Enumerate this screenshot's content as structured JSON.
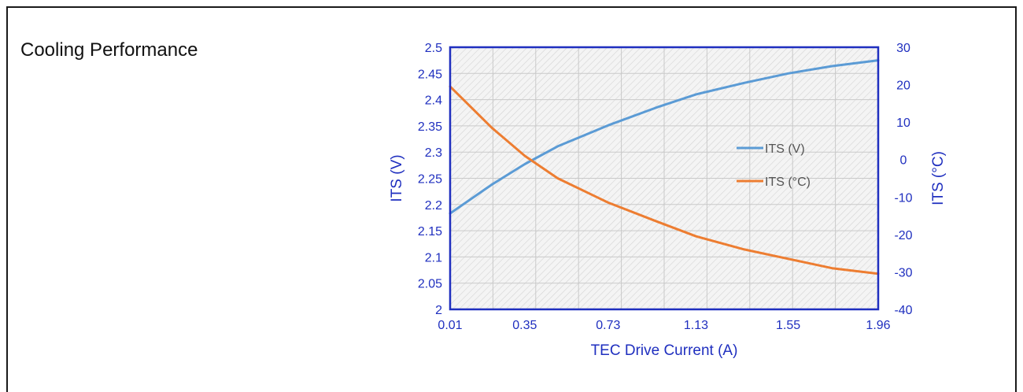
{
  "panel": {
    "title": "Cooling Performance"
  },
  "chart_data": {
    "type": "line",
    "xlabel": "TEC Drive Current (A)",
    "ylabel": "ITS (V)",
    "y2label": "ITS (°C)",
    "x_ticks": [
      "0.01",
      "0.35",
      "0.73",
      "1.13",
      "1.55",
      "1.96"
    ],
    "xlim": [
      0.01,
      1.96
    ],
    "ylim": [
      2.0,
      2.5
    ],
    "y_ticks": [
      "2",
      "2.05",
      "2.1",
      "2.15",
      "2.2",
      "2.25",
      "2.3",
      "2.35",
      "2.4",
      "2.45",
      "2.5"
    ],
    "y2lim": [
      -40,
      30
    ],
    "y2_ticks": [
      "-40",
      "-30",
      "-20",
      "-10",
      "0",
      "10",
      "20",
      "30"
    ],
    "grid": true,
    "legend_position": "center-right",
    "series": [
      {
        "name": "ITS (V)",
        "axis": "left",
        "color": "#5b9bd5",
        "x": [
          0.01,
          0.2,
          0.35,
          0.5,
          0.73,
          0.95,
          1.13,
          1.35,
          1.55,
          1.75,
          1.96
        ],
        "values": [
          2.183,
          2.238,
          2.277,
          2.311,
          2.351,
          2.385,
          2.41,
          2.432,
          2.45,
          2.464,
          2.475
        ]
      },
      {
        "name": "ITS (°C)",
        "axis": "right",
        "color": "#ed7d31",
        "x": [
          0.01,
          0.2,
          0.35,
          0.5,
          0.73,
          0.95,
          1.13,
          1.35,
          1.55,
          1.75,
          1.96
        ],
        "values": [
          19.5,
          8.5,
          1.0,
          -5.0,
          -11.5,
          -16.5,
          -20.5,
          -24.0,
          -26.5,
          -29.0,
          -30.5
        ]
      }
    ]
  }
}
